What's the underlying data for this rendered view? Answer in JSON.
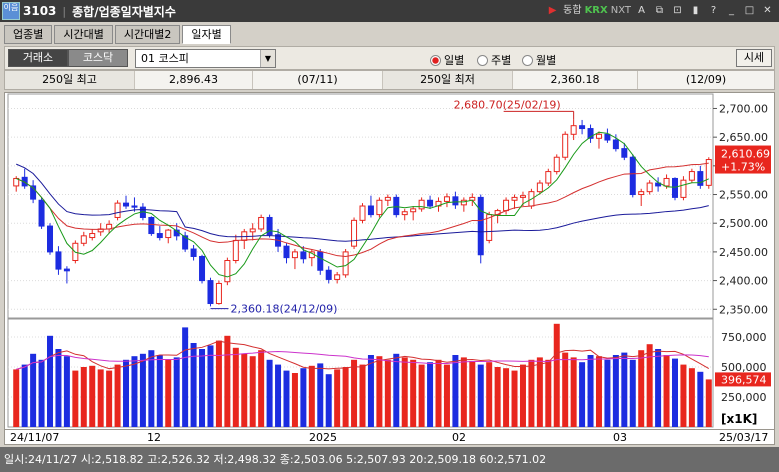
{
  "window": {
    "logo": "이음",
    "code": "3103",
    "title": "종합/업종일자별지수",
    "buttons": [
      "▶",
      "동합",
      "KRX",
      "NXT",
      "A",
      "⧉",
      "⊡",
      "▮",
      "?",
      "_",
      "□",
      "✕"
    ]
  },
  "tabs": [
    {
      "label": "업종별",
      "active": false
    },
    {
      "label": "시간대별",
      "active": false
    },
    {
      "label": "시간대별2",
      "active": false
    },
    {
      "label": "일자별",
      "active": true
    }
  ],
  "toolbar": {
    "market_buttons": [
      "거래소",
      "코스닥"
    ],
    "index_select": "01  코스피",
    "period_options": [
      {
        "label": "일별",
        "selected": true
      },
      {
        "label": "주별",
        "selected": false
      },
      {
        "label": "월별",
        "selected": false
      }
    ],
    "quote_button": "시세"
  },
  "info": {
    "high_label": "250일 최고",
    "high_value": "2,896.43",
    "high_date": "(07/11)",
    "low_label": "250일 최저",
    "low_value": "2,360.18",
    "low_date": "(12/09)"
  },
  "chart_data": {
    "type": "candlestick",
    "price_axis": [
      "2,700.00",
      "2,650.00",
      "2,600.00",
      "2,550.00",
      "2,500.00",
      "2,450.00",
      "2,400.00",
      "2,350.00"
    ],
    "price_ylim": [
      2340,
      2720
    ],
    "volume_axis": [
      "750,000",
      "500,000",
      "250,000"
    ],
    "volume_unit": "[x1K]",
    "volume_ylim": [
      0,
      900000
    ],
    "x_labels": [
      "24/11/07",
      "12",
      "2025",
      "02",
      "03",
      "25/03/17"
    ],
    "annotation_high": "2,680.70(25/02/19)",
    "annotation_low": "2,360.18(24/12/09)",
    "last_price": "2,610.69",
    "last_change": "+1.73%",
    "last_volume": "396,574",
    "candles": [
      [
        2565,
        2582,
        2555,
        2578
      ],
      [
        2580,
        2595,
        2560,
        2565
      ],
      [
        2565,
        2575,
        2535,
        2542
      ],
      [
        2540,
        2545,
        2490,
        2495
      ],
      [
        2495,
        2500,
        2445,
        2450
      ],
      [
        2450,
        2460,
        2410,
        2420
      ],
      [
        2420,
        2425,
        2395,
        2417
      ],
      [
        2435,
        2470,
        2430,
        2465
      ],
      [
        2465,
        2485,
        2460,
        2478
      ],
      [
        2475,
        2490,
        2470,
        2482
      ],
      [
        2485,
        2500,
        2478,
        2490
      ],
      [
        2490,
        2505,
        2482,
        2498
      ],
      [
        2510,
        2540,
        2505,
        2535
      ],
      [
        2535,
        2548,
        2525,
        2530
      ],
      [
        2530,
        2545,
        2520,
        2528
      ],
      [
        2528,
        2535,
        2505,
        2510
      ],
      [
        2510,
        2512,
        2478,
        2482
      ],
      [
        2482,
        2495,
        2470,
        2475
      ],
      [
        2475,
        2490,
        2465,
        2488
      ],
      [
        2488,
        2500,
        2470,
        2478
      ],
      [
        2478,
        2485,
        2450,
        2455
      ],
      [
        2455,
        2462,
        2435,
        2442
      ],
      [
        2442,
        2445,
        2395,
        2400
      ],
      [
        2400,
        2405,
        2355,
        2360
      ],
      [
        2360,
        2400,
        2358,
        2395
      ],
      [
        2398,
        2440,
        2392,
        2435
      ],
      [
        2435,
        2480,
        2430,
        2470
      ],
      [
        2470,
        2490,
        2455,
        2485
      ],
      [
        2485,
        2500,
        2470,
        2490
      ],
      [
        2490,
        2515,
        2485,
        2510
      ],
      [
        2510,
        2515,
        2475,
        2480
      ],
      [
        2480,
        2490,
        2450,
        2460
      ],
      [
        2460,
        2465,
        2430,
        2440
      ],
      [
        2440,
        2455,
        2420,
        2450
      ],
      [
        2450,
        2460,
        2430,
        2438
      ],
      [
        2440,
        2455,
        2425,
        2450
      ],
      [
        2450,
        2455,
        2410,
        2418
      ],
      [
        2418,
        2425,
        2395,
        2402
      ],
      [
        2402,
        2415,
        2395,
        2410
      ],
      [
        2410,
        2455,
        2405,
        2450
      ],
      [
        2460,
        2510,
        2455,
        2505
      ],
      [
        2505,
        2535,
        2500,
        2530
      ],
      [
        2530,
        2548,
        2510,
        2515
      ],
      [
        2515,
        2545,
        2510,
        2540
      ],
      [
        2540,
        2550,
        2530,
        2545
      ],
      [
        2545,
        2550,
        2510,
        2515
      ],
      [
        2515,
        2525,
        2505,
        2520
      ],
      [
        2520,
        2530,
        2505,
        2525
      ],
      [
        2525,
        2545,
        2520,
        2540
      ],
      [
        2540,
        2548,
        2525,
        2530
      ],
      [
        2530,
        2545,
        2520,
        2538
      ],
      [
        2538,
        2552,
        2528,
        2546
      ],
      [
        2546,
        2555,
        2525,
        2532
      ],
      [
        2532,
        2545,
        2520,
        2540
      ],
      [
        2540,
        2552,
        2530,
        2545
      ],
      [
        2545,
        2550,
        2430,
        2445
      ],
      [
        2470,
        2520,
        2465,
        2515
      ],
      [
        2515,
        2525,
        2500,
        2522
      ],
      [
        2522,
        2545,
        2515,
        2540
      ],
      [
        2540,
        2550,
        2525,
        2545
      ],
      [
        2545,
        2555,
        2530,
        2548
      ],
      [
        2530,
        2560,
        2525,
        2555
      ],
      [
        2555,
        2575,
        2550,
        2570
      ],
      [
        2570,
        2595,
        2565,
        2590
      ],
      [
        2590,
        2620,
        2585,
        2615
      ],
      [
        2615,
        2660,
        2610,
        2655
      ],
      [
        2655,
        2681,
        2645,
        2670
      ],
      [
        2670,
        2680,
        2655,
        2665
      ],
      [
        2665,
        2672,
        2640,
        2648
      ],
      [
        2648,
        2660,
        2630,
        2655
      ],
      [
        2655,
        2665,
        2640,
        2645
      ],
      [
        2645,
        2655,
        2625,
        2630
      ],
      [
        2630,
        2640,
        2610,
        2615
      ],
      [
        2615,
        2620,
        2545,
        2550
      ],
      [
        2550,
        2560,
        2530,
        2555
      ],
      [
        2555,
        2575,
        2550,
        2570
      ],
      [
        2570,
        2580,
        2555,
        2565
      ],
      [
        2565,
        2585,
        2560,
        2578
      ],
      [
        2578,
        2580,
        2540,
        2545
      ],
      [
        2545,
        2582,
        2540,
        2575
      ],
      [
        2575,
        2595,
        2570,
        2590
      ],
      [
        2590,
        2600,
        2560,
        2566
      ],
      [
        2566,
        2615,
        2560,
        2611
      ]
    ],
    "volumes": [
      480000,
      520000,
      610000,
      560000,
      760000,
      650000,
      590000,
      470000,
      500000,
      510000,
      480000,
      470000,
      520000,
      560000,
      590000,
      610000,
      640000,
      600000,
      560000,
      580000,
      830000,
      700000,
      650000,
      680000,
      720000,
      760000,
      660000,
      610000,
      590000,
      640000,
      560000,
      520000,
      470000,
      450000,
      490000,
      510000,
      530000,
      440000,
      480000,
      500000,
      560000,
      520000,
      600000,
      590000,
      560000,
      610000,
      580000,
      560000,
      520000,
      540000,
      560000,
      520000,
      600000,
      580000,
      550000,
      520000,
      540000,
      500000,
      490000,
      470000,
      520000,
      560000,
      580000,
      560000,
      860000,
      620000,
      580000,
      540000,
      600000,
      590000,
      560000,
      600000,
      620000,
      560000,
      640000,
      690000,
      650000,
      600000,
      570000,
      520000,
      490000,
      460000,
      396574
    ]
  },
  "status": {
    "text": "일시:24/11/27 시:2,518.82 고:2,526.32 저:2,498.32 종:2,503.06 5:2,507.93 20:2,509.18 60:2,571.02"
  },
  "colors": {
    "up": "#e8261e",
    "down": "#1c2ce0",
    "ma5": "#1a9a1a",
    "ma20": "#d43030",
    "ma60": "#1a1a9a",
    "volume_ma": "#cc33cc"
  }
}
